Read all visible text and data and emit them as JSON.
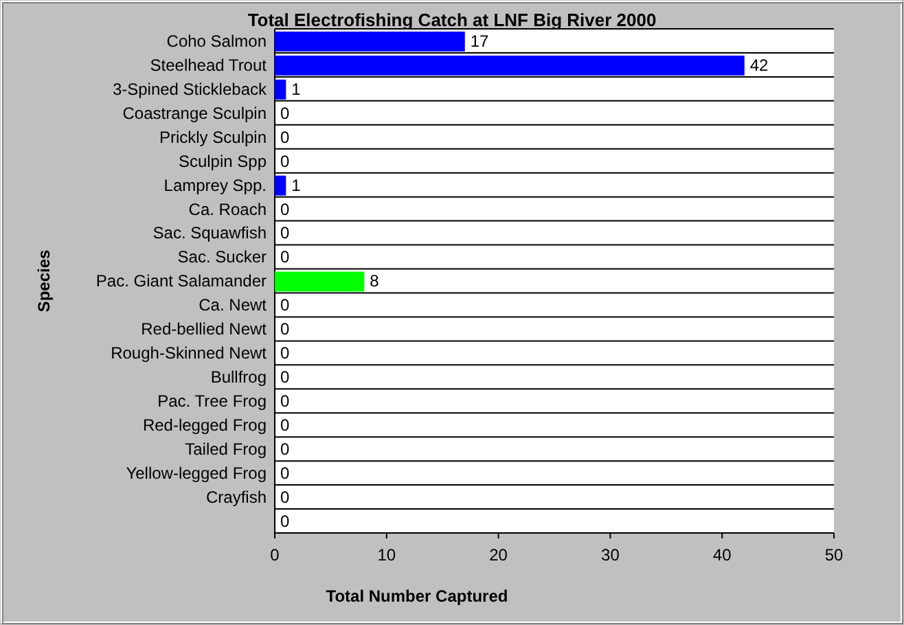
{
  "chart_data": {
    "type": "bar",
    "orientation": "horizontal",
    "title": "Total Electrofishing Catch at LNF Big River 2000",
    "xlabel": "Total Number Captured",
    "ylabel": "Species",
    "categories": [
      "Coho Salmon",
      "Steelhead Trout",
      "3-Spined Stickleback",
      "Coastrange Sculpin",
      "Prickly Sculpin",
      "Sculpin Spp",
      "Lamprey Spp.",
      "Ca. Roach",
      "Sac. Squawfish",
      "Sac. Sucker",
      "Pac. Giant Salamander",
      "Ca. Newt",
      "Red-bellied Newt",
      "Rough-Skinned Newt",
      "Bullfrog",
      "Pac. Tree Frog",
      "Red-legged Frog",
      "Tailed Frog",
      "Yellow-legged Frog",
      "Crayfish",
      null
    ],
    "values": [
      17,
      42,
      1,
      0,
      0,
      0,
      1,
      0,
      0,
      0,
      8,
      0,
      0,
      0,
      0,
      0,
      0,
      0,
      0,
      0,
      0
    ],
    "colors": [
      "#0000ff",
      "#0000ff",
      "#0000ff",
      null,
      null,
      null,
      "#0000ff",
      null,
      null,
      null,
      "#00ff00",
      null,
      null,
      null,
      null,
      null,
      null,
      null,
      null,
      null,
      null
    ],
    "xlim": [
      0,
      50
    ],
    "xticks": [
      0,
      10,
      20,
      30,
      40,
      50
    ],
    "grid": "y",
    "data_labels": true
  }
}
